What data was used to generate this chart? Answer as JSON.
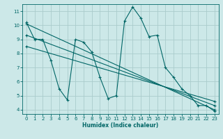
{
  "xlabel": "Humidex (Indice chaleur)",
  "bg_color": "#cce8e8",
  "grid_color": "#aacccc",
  "line_color": "#006666",
  "xlim": [
    -0.5,
    23.5
  ],
  "ylim": [
    3.7,
    11.5
  ],
  "yticks": [
    4,
    5,
    6,
    7,
    8,
    9,
    10,
    11
  ],
  "xticks": [
    0,
    1,
    2,
    3,
    4,
    5,
    6,
    7,
    8,
    9,
    10,
    11,
    12,
    13,
    14,
    15,
    16,
    17,
    18,
    19,
    20,
    21,
    22,
    23
  ],
  "line1_x": [
    0,
    1,
    2,
    3,
    4,
    5,
    6,
    7,
    8,
    9,
    10,
    11,
    12,
    13,
    14,
    15,
    16,
    17,
    18,
    19,
    20,
    21,
    22,
    23
  ],
  "line1_y": [
    10.2,
    9.0,
    9.0,
    7.5,
    5.5,
    4.7,
    9.0,
    8.8,
    8.1,
    6.3,
    4.8,
    5.0,
    10.3,
    11.3,
    10.5,
    9.2,
    9.3,
    7.0,
    6.3,
    5.5,
    5.0,
    4.3,
    4.3,
    3.9
  ],
  "line2_x": [
    0,
    23
  ],
  "line2_y": [
    10.1,
    4.0
  ],
  "line3_x": [
    0,
    23
  ],
  "line3_y": [
    9.3,
    4.3
  ],
  "line4_x": [
    0,
    23
  ],
  "line4_y": [
    8.5,
    4.6
  ]
}
